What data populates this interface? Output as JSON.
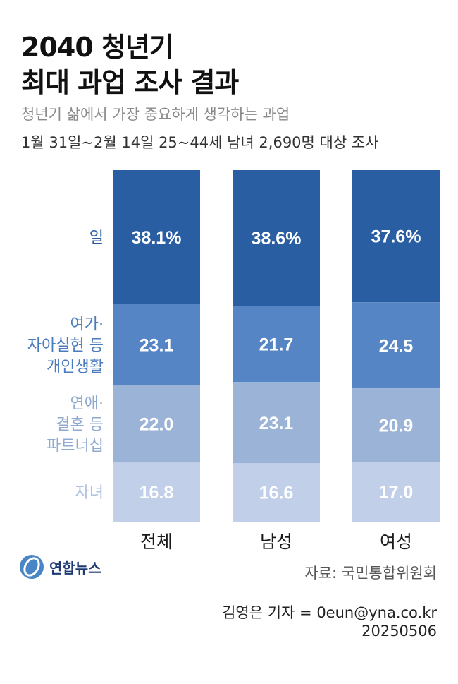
{
  "header": {
    "title_line1": "2040 청년기",
    "title_line2": "최대 과업 조사 결과",
    "subtitle": "청년기 삶에서 가장 중요하게 생각하는 과업",
    "survey_note": "1월 31일~2월 14일 25~44세 남녀 2,690명 대상 조사"
  },
  "chart_data": {
    "type": "bar",
    "stacked": true,
    "normalized_percent": true,
    "categories": [
      "전체",
      "남성",
      "여성"
    ],
    "series": [
      {
        "name": "일",
        "label_lines": [
          "일"
        ],
        "values": [
          38.1,
          38.6,
          37.6
        ],
        "labels": [
          "38.1%",
          "38.6%",
          "37.6%"
        ],
        "color": "#2a5ea3",
        "label_color": "#2a5ea3"
      },
      {
        "name": "여가·자아실현 등 개인생활",
        "label_lines": [
          "여가·",
          "자아실현 등",
          "개인생활"
        ],
        "values": [
          23.1,
          21.7,
          24.5
        ],
        "labels": [
          "23.1",
          "21.7",
          "24.5"
        ],
        "color": "#5685c6",
        "label_color": "#4a7bbd"
      },
      {
        "name": "연애·결혼 등 파트너십",
        "label_lines": [
          "연애·",
          "결혼 등",
          "파트너십"
        ],
        "values": [
          22.0,
          23.1,
          20.9
        ],
        "labels": [
          "22.0",
          "23.1",
          "20.9"
        ],
        "color": "#9bb3d6",
        "label_color": "#8fa9d0"
      },
      {
        "name": "자녀",
        "label_lines": [
          "자녀"
        ],
        "values": [
          16.8,
          16.6,
          17.0
        ],
        "labels": [
          "16.8",
          "16.6",
          "17.0"
        ],
        "color": "#c1d0e8",
        "label_color": "#b0c3e2"
      }
    ]
  },
  "footer": {
    "logo_text": "연합뉴스",
    "source": "자료: 국민통합위원회",
    "credit": "김영은 기자 = 0eun@yna.co.kr",
    "date": "20250506"
  }
}
